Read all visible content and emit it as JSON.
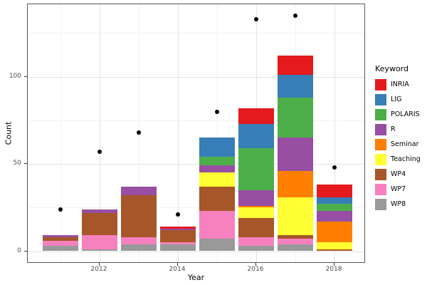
{
  "axes": {
    "x_label": "Year",
    "y_label": "Count",
    "y_tick_labels": [
      "0",
      "50",
      "100"
    ],
    "x_tick_labels": [
      "2012",
      "2014",
      "2016",
      "2018"
    ]
  },
  "legend": {
    "title": "Keyword"
  },
  "chart_data": {
    "type": "bar",
    "subtype": "stacked-bars-with-scatter-overlay",
    "title": "",
    "xlabel": "Year",
    "ylabel": "Count",
    "legend_title": "Keyword",
    "legend_position": "right",
    "grid": true,
    "categories": [
      2011,
      2012,
      2013,
      2014,
      2015,
      2016,
      2017,
      2018
    ],
    "series": [
      {
        "name": "INRIA",
        "color": "#e41a1c",
        "values": [
          0,
          0,
          0,
          1,
          0,
          9,
          11,
          7
        ]
      },
      {
        "name": "LIG",
        "color": "#377eb8",
        "values": [
          0,
          0,
          0,
          0,
          11,
          14,
          13,
          4
        ]
      },
      {
        "name": "POLARIS",
        "color": "#4daf4a",
        "values": [
          0,
          0,
          0,
          0,
          5,
          24,
          23,
          4
        ]
      },
      {
        "name": "R",
        "color": "#984ea3",
        "values": [
          1,
          2,
          5,
          1,
          4,
          9,
          19,
          6
        ]
      },
      {
        "name": "Seminar",
        "color": "#ff7f00",
        "values": [
          0,
          0,
          0,
          0,
          0,
          1,
          15,
          12
        ]
      },
      {
        "name": "Teaching",
        "color": "#ffff33",
        "values": [
          0,
          0,
          0,
          0,
          8,
          6,
          22,
          4
        ]
      },
      {
        "name": "WP4",
        "color": "#a65628",
        "values": [
          2,
          13,
          24,
          7,
          14,
          11,
          2,
          1
        ]
      },
      {
        "name": "WP7",
        "color": "#f781bf",
        "values": [
          3,
          8,
          4,
          1,
          16,
          5,
          3,
          0
        ]
      },
      {
        "name": "WP8",
        "color": "#999999",
        "values": [
          3,
          1,
          4,
          4,
          7,
          3,
          4,
          0
        ]
      }
    ],
    "bar_totals": [
      9,
      24,
      37,
      14,
      65,
      82,
      112,
      38
    ],
    "points": {
      "name": "black-dots",
      "color": "#000000",
      "values": [
        24,
        57,
        68,
        21,
        80,
        133,
        135,
        48
      ]
    },
    "ylim": [
      -7,
      141
    ],
    "y_major_ticks": [
      0,
      50,
      100
    ],
    "y_minor_ticks": [
      25,
      75,
      125
    ],
    "x_major_ticks": [
      2012,
      2014,
      2016,
      2018
    ],
    "x_minor_ticks": [
      2011,
      2013,
      2015,
      2017
    ]
  }
}
